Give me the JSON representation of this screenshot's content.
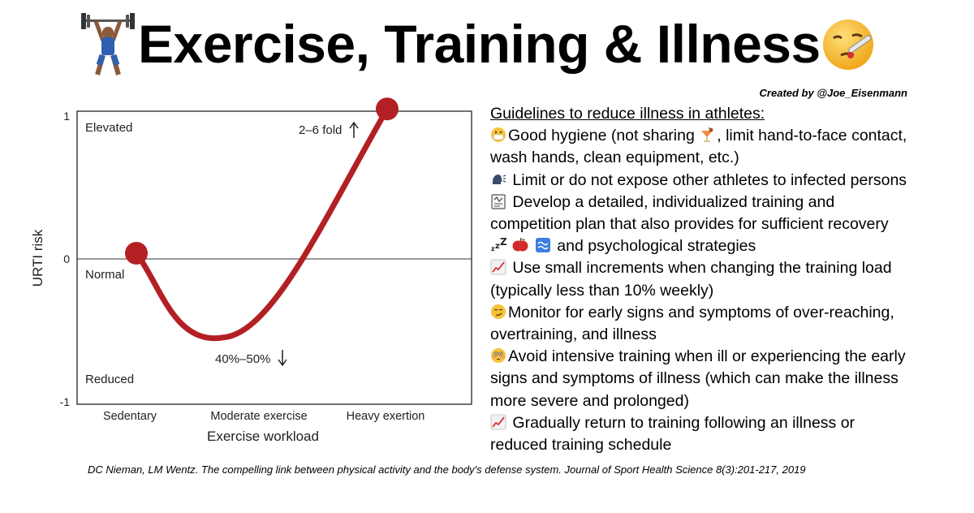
{
  "header": {
    "title": "Exercise, Training & Illness",
    "credit": "Created by @Joe_Eisenmann",
    "left_icon": "weightlifter-icon",
    "right_icon": "sick-face-thermometer-icon"
  },
  "chart_data": {
    "type": "line",
    "xlabel": "Exercise workload",
    "ylabel": "URTI risk",
    "categories": [
      "Sedentary",
      "Moderate exercise",
      "Heavy exertion"
    ],
    "yticks": [
      "1",
      "0",
      "-1"
    ],
    "ylim": [
      -1,
      1
    ],
    "region_labels": [
      "Elevated",
      "Normal",
      "Reduced"
    ],
    "series": [
      {
        "name": "",
        "color": "#b32024",
        "points": [
          {
            "x": "Sedentary",
            "y": 0.04
          },
          {
            "x": "Moderate exercise",
            "y": -0.55
          },
          {
            "x": "Heavy exertion",
            "y": 1.05
          }
        ]
      }
    ],
    "annotations": [
      "2–6 fold",
      "40%–50%"
    ],
    "grid": false
  },
  "guidelines": {
    "heading": "Guidelines to reduce illness in athletes:",
    "items": [
      {
        "icon": "mask-face-icon",
        "lines": [
          "Good hygiene (not sharing ",
          ", limit hand-to-face contact,",
          "wash hands, clean equipment, etc.)"
        ],
        "inline_icon": "tropical-drink-icon"
      },
      {
        "icon": "speaking-head-icon",
        "lines": [
          " Limit or do not expose other athletes to infected persons"
        ]
      },
      {
        "icon": "clipboard-plan-icon",
        "lines": [
          " Develop a detailed, individualized training and",
          "competition plan that also provides for sufficient recovery"
        ]
      },
      {
        "icons": [
          "sleep-zzz-icon",
          "apple-icon",
          "water-icon"
        ],
        "lines": [
          " and psychological strategies"
        ]
      },
      {
        "icon": "chart-increasing-icon",
        "lines": [
          " Use small increments when changing the training load",
          "(typically less than 10% weekly)"
        ]
      },
      {
        "icon": "smirk-face-icon",
        "lines": [
          "Monitor for early signs and symptoms of over-reaching,",
          "overtraining, and illness"
        ]
      },
      {
        "icon": "flushed-face-icon",
        "lines": [
          "Avoid intensive training when ill or experiencing the early",
          "signs and symptoms of illness (which can make the illness",
          "more severe and prolonged)"
        ]
      },
      {
        "icon": "chart-increasing-icon",
        "lines": [
          " Gradually return to training following an illness or",
          "reduced training schedule"
        ]
      }
    ]
  },
  "citation": "DC Nieman, LM Wentz. The compelling link between physical activity and the body's defense system. Journal of Sport Health Science 8(3):201-217, 2019"
}
